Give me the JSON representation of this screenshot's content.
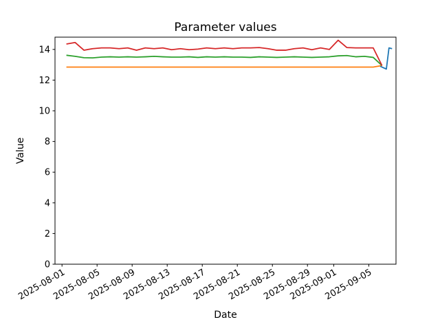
{
  "figure": {
    "background": "#ffffff",
    "title": "Parameter values"
  },
  "chart_data": {
    "type": "line",
    "title": "Parameter values",
    "xlabel": "Date",
    "ylabel": "Value",
    "grid": false,
    "legend": "none",
    "ylim": [
      0,
      14.8
    ],
    "xlim_days": [
      -0.8,
      38.1
    ],
    "start_date": "2025-08-01",
    "y_ticks": [
      0,
      2,
      4,
      6,
      8,
      10,
      12,
      14
    ],
    "x_tick_days": [
      0,
      4,
      8,
      12,
      16,
      20,
      24,
      28,
      31,
      35
    ],
    "x_tick_labels": [
      "2025-08-01",
      "2025-08-05",
      "2025-08-09",
      "2025-08-13",
      "2025-08-17",
      "2025-08-21",
      "2025-08-25",
      "2025-08-29",
      "2025-09-01",
      "2025-09-05"
    ],
    "x_tick_rotation_deg": 30,
    "axis_color": "#000000",
    "series": [
      {
        "name": "series-orange",
        "color": "#ff7f0e",
        "x_offset_days": 0.5,
        "x_step_days": 1,
        "values": [
          12.85,
          12.85,
          12.85,
          12.85,
          12.85,
          12.85,
          12.85,
          12.85,
          12.85,
          12.85,
          12.85,
          12.85,
          12.85,
          12.85,
          12.85,
          12.85,
          12.85,
          12.85,
          12.85,
          12.85,
          12.85,
          12.85,
          12.85,
          12.85,
          12.85,
          12.85,
          12.85,
          12.85,
          12.85,
          12.85,
          12.85,
          12.85,
          12.85,
          12.85,
          12.85,
          12.85,
          12.95
        ]
      },
      {
        "name": "series-green",
        "color": "#2ca02c",
        "x_offset_days": 0.5,
        "x_step_days": 1,
        "values": [
          13.62,
          13.55,
          13.46,
          13.45,
          13.5,
          13.52,
          13.5,
          13.52,
          13.5,
          13.52,
          13.55,
          13.52,
          13.5,
          13.5,
          13.52,
          13.48,
          13.52,
          13.5,
          13.52,
          13.5,
          13.5,
          13.48,
          13.52,
          13.5,
          13.48,
          13.5,
          13.52,
          13.5,
          13.48,
          13.5,
          13.52,
          13.58,
          13.6,
          13.52,
          13.55,
          13.48,
          12.95
        ]
      },
      {
        "name": "series-red",
        "color": "#d62728",
        "x_offset_days": 0.5,
        "x_step_days": 1,
        "values": [
          14.35,
          14.45,
          13.95,
          14.05,
          14.1,
          14.1,
          14.05,
          14.1,
          13.95,
          14.1,
          14.05,
          14.1,
          13.98,
          14.05,
          13.98,
          14.02,
          14.1,
          14.05,
          14.1,
          14.05,
          14.1,
          14.1,
          14.12,
          14.05,
          13.95,
          13.95,
          14.05,
          14.1,
          13.98,
          14.1,
          14.0,
          14.6,
          14.12,
          14.1,
          14.1,
          14.1,
          12.95
        ]
      },
      {
        "name": "series-blue",
        "color": "#1f77b4",
        "x_days": [
          36.3,
          37.0,
          37.3,
          37.65
        ],
        "values": [
          12.9,
          12.72,
          14.1,
          14.05
        ]
      }
    ]
  }
}
